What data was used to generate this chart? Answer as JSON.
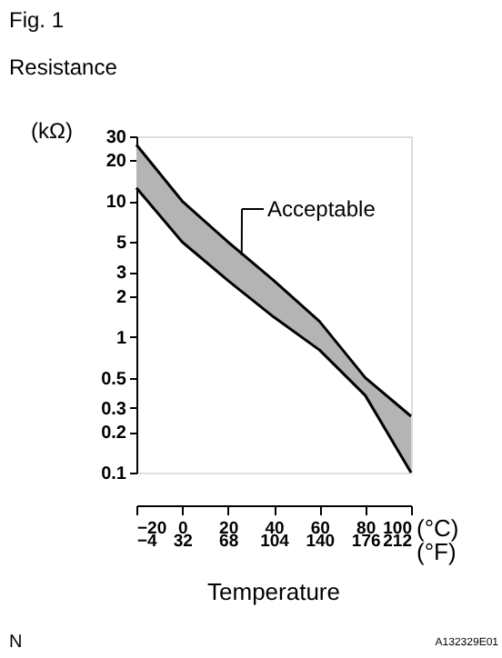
{
  "chart_data": {
    "type": "line",
    "title": "Fig. 1",
    "subtitle": "Resistance",
    "ylabel": "(kΩ)",
    "xlabel": "Temperature",
    "x": [
      -20,
      0,
      20,
      40,
      60,
      80,
      100
    ],
    "series": [
      {
        "color": "#000000",
        "values": [
          26,
          10,
          5,
          2.6,
          1.3,
          0.5,
          0.26
        ]
      },
      {
        "color": "#000000",
        "values": [
          12.5,
          5,
          2.6,
          1.4,
          0.8,
          0.37,
          0.1
        ],
        "lower": [
          12.5,
          5,
          2.6,
          1.4,
          0.8,
          0.37,
          0.1
        ],
        "upper": [
          26,
          10,
          5,
          2.6,
          1.3,
          0.5,
          0.26
        ]
      }
    ],
    "log": "y",
    "grid": false,
    "legend": false,
    "xlim": [
      -20,
      100
    ],
    "xticks": [
      -20,
      0,
      20,
      40,
      60,
      80,
      100
    ],
    "x2lim": [
      -4,
      212
    ],
    "x2ticks": [
      -4,
      32,
      68,
      104,
      140,
      176,
      212
    ],
    "ylim": [
      0.1,
      30
    ],
    "yticks": [
      0.1,
      0.2,
      0.3,
      0.5,
      1,
      2,
      3,
      5,
      10,
      20,
      30
    ],
    "annotations": [
      {
        "text": "Acceptable",
        "x": 26,
        "y": 4
      },
      "(°C)",
      "(°F)",
      "N",
      "A132329E01"
    ]
  }
}
